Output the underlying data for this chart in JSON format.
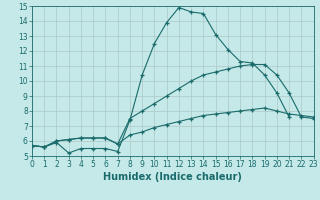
{
  "xlabel": "Humidex (Indice chaleur)",
  "background_color": "#c5e8e8",
  "line_color": "#1a6b6b",
  "xlim": [
    0,
    23
  ],
  "ylim": [
    5,
    15
  ],
  "series": [
    {
      "x": [
        0,
        1,
        2,
        3,
        4,
        5,
        6,
        7,
        8,
        9,
        10,
        11,
        12,
        13,
        14,
        15,
        16,
        17,
        18,
        19,
        20,
        21
      ],
      "y": [
        5.7,
        5.6,
        5.9,
        5.2,
        5.5,
        5.5,
        5.5,
        5.3,
        7.4,
        10.4,
        12.5,
        13.9,
        14.9,
        14.6,
        14.5,
        13.1,
        12.1,
        11.3,
        11.2,
        10.4,
        9.2,
        7.6
      ]
    },
    {
      "x": [
        0,
        1,
        2,
        3,
        4,
        5,
        6,
        7,
        8,
        9,
        10,
        11,
        12,
        13,
        14,
        15,
        16,
        17,
        18,
        19,
        20,
        21,
        22,
        23
      ],
      "y": [
        5.7,
        5.6,
        6.0,
        6.1,
        6.2,
        6.2,
        6.2,
        5.8,
        7.5,
        8.0,
        8.5,
        9.0,
        9.5,
        10.0,
        10.4,
        10.6,
        10.8,
        11.0,
        11.1,
        11.1,
        10.4,
        9.2,
        7.6,
        7.5
      ]
    },
    {
      "x": [
        0,
        1,
        2,
        3,
        4,
        5,
        6,
        7,
        8,
        9,
        10,
        11,
        12,
        13,
        14,
        15,
        16,
        17,
        18,
        19,
        20,
        21,
        22,
        23
      ],
      "y": [
        5.7,
        5.6,
        6.0,
        6.1,
        6.2,
        6.2,
        6.2,
        5.8,
        6.4,
        6.6,
        6.9,
        7.1,
        7.3,
        7.5,
        7.7,
        7.8,
        7.9,
        8.0,
        8.1,
        8.2,
        8.0,
        7.8,
        7.7,
        7.6
      ]
    }
  ],
  "marker": "+",
  "markersize": 3,
  "linewidth": 0.8,
  "tick_fontsize": 5.5,
  "xlabel_fontsize": 7
}
